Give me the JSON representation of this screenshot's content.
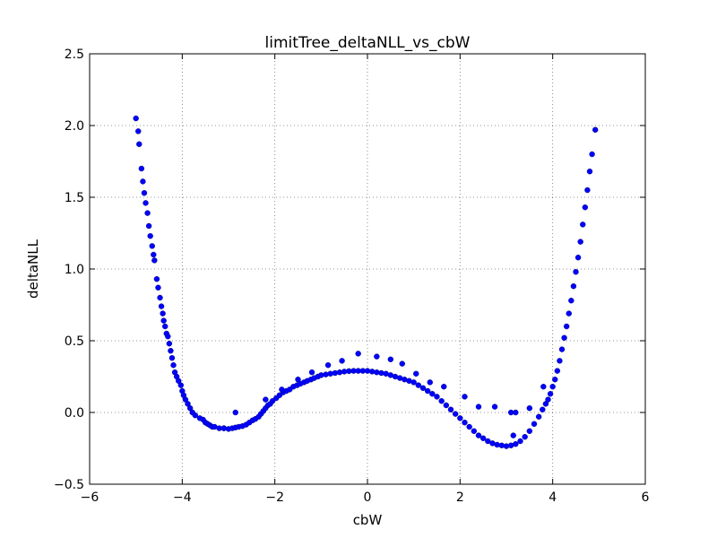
{
  "chart_data": {
    "type": "scatter",
    "title": "limitTree_deltaNLL_vs_cbW",
    "xlabel": "cbW",
    "ylabel": "deltaNLL",
    "xlim": [
      -6,
      6
    ],
    "ylim": [
      -0.5,
      2.5
    ],
    "xticks": [
      -6,
      -4,
      -2,
      0,
      2,
      4,
      6
    ],
    "yticks": [
      -0.5,
      0.0,
      0.5,
      1.0,
      1.5,
      2.0,
      2.5
    ],
    "xtick_labels": [
      "−6",
      "−4",
      "−2",
      "0",
      "2",
      "4",
      "6"
    ],
    "ytick_labels": [
      "−0.5",
      "0.0",
      "0.5",
      "1.0",
      "1.5",
      "2.0",
      "2.5"
    ],
    "grid": true,
    "marker_color": "#0000ff",
    "series": [
      {
        "points": [
          [
            -5.0,
            2.05
          ],
          [
            -4.95,
            1.96
          ],
          [
            -4.93,
            1.87
          ],
          [
            -4.88,
            1.7
          ],
          [
            -4.85,
            1.61
          ],
          [
            -4.82,
            1.53
          ],
          [
            -4.79,
            1.46
          ],
          [
            -4.75,
            1.39
          ],
          [
            -4.72,
            1.3
          ],
          [
            -4.69,
            1.23
          ],
          [
            -4.65,
            1.16
          ],
          [
            -4.62,
            1.1
          ],
          [
            -4.6,
            1.06
          ],
          [
            -4.55,
            0.93
          ],
          [
            -4.52,
            0.87
          ],
          [
            -4.48,
            0.8
          ],
          [
            -4.45,
            0.74
          ],
          [
            -4.42,
            0.69
          ],
          [
            -4.4,
            0.64
          ],
          [
            -4.37,
            0.6
          ],
          [
            -4.34,
            0.55
          ],
          [
            -4.31,
            0.53
          ],
          [
            -4.28,
            0.48
          ],
          [
            -4.25,
            0.43
          ],
          [
            -4.22,
            0.38
          ],
          [
            -4.19,
            0.33
          ],
          [
            -4.16,
            0.28
          ],
          [
            -4.12,
            0.25
          ],
          [
            -4.08,
            0.22
          ],
          [
            -4.03,
            0.19
          ],
          [
            -4.0,
            0.15
          ],
          [
            -3.97,
            0.12
          ],
          [
            -3.93,
            0.09
          ],
          [
            -3.88,
            0.06
          ],
          [
            -3.83,
            0.03
          ],
          [
            -3.78,
            0.0
          ],
          [
            -3.72,
            -0.02
          ],
          [
            -3.62,
            -0.04
          ],
          [
            -3.55,
            -0.05
          ],
          [
            -3.5,
            -0.07
          ],
          [
            -3.45,
            -0.08
          ],
          [
            -3.4,
            -0.09
          ],
          [
            -3.35,
            -0.1
          ],
          [
            -3.3,
            -0.1
          ],
          [
            -3.2,
            -0.11
          ],
          [
            -3.1,
            -0.11
          ],
          [
            -3.0,
            -0.115
          ],
          [
            -2.92,
            -0.11
          ],
          [
            -2.85,
            -0.105
          ],
          [
            -2.78,
            -0.1
          ],
          [
            -2.7,
            -0.095
          ],
          [
            -2.62,
            -0.085
          ],
          [
            -2.55,
            -0.07
          ],
          [
            -2.48,
            -0.055
          ],
          [
            -2.42,
            -0.045
          ],
          [
            -2.35,
            -0.03
          ],
          [
            -2.3,
            -0.01
          ],
          [
            -2.25,
            0.01
          ],
          [
            -2.2,
            0.03
          ],
          [
            -2.15,
            0.05
          ],
          [
            -2.1,
            0.06
          ],
          [
            -2.05,
            0.08
          ],
          [
            -1.97,
            0.1
          ],
          [
            -1.9,
            0.12
          ],
          [
            -1.82,
            0.14
          ],
          [
            -1.75,
            0.15
          ],
          [
            -1.68,
            0.16
          ],
          [
            -1.6,
            0.18
          ],
          [
            -1.52,
            0.19
          ],
          [
            -1.45,
            0.2
          ],
          [
            -1.37,
            0.21
          ],
          [
            -1.3,
            0.22
          ],
          [
            -1.22,
            0.23
          ],
          [
            -1.15,
            0.24
          ],
          [
            -1.07,
            0.25
          ],
          [
            -1.0,
            0.26
          ],
          [
            -0.9,
            0.265
          ],
          [
            -0.8,
            0.27
          ],
          [
            -0.7,
            0.275
          ],
          [
            -0.6,
            0.28
          ],
          [
            -0.5,
            0.285
          ],
          [
            -0.4,
            0.288
          ],
          [
            -0.3,
            0.29
          ],
          [
            -0.2,
            0.29
          ],
          [
            -0.1,
            0.29
          ],
          [
            0.0,
            0.29
          ],
          [
            0.1,
            0.285
          ],
          [
            0.2,
            0.28
          ],
          [
            0.3,
            0.275
          ],
          [
            0.4,
            0.27
          ],
          [
            0.5,
            0.26
          ],
          [
            0.6,
            0.25
          ],
          [
            0.7,
            0.24
          ],
          [
            0.8,
            0.23
          ],
          [
            0.9,
            0.22
          ],
          [
            1.0,
            0.21
          ],
          [
            1.1,
            0.19
          ],
          [
            1.2,
            0.17
          ],
          [
            1.3,
            0.15
          ],
          [
            1.4,
            0.13
          ],
          [
            1.5,
            0.11
          ],
          [
            1.6,
            0.08
          ],
          [
            1.7,
            0.05
          ],
          [
            1.8,
            0.02
          ],
          [
            1.9,
            -0.01
          ],
          [
            2.0,
            -0.04
          ],
          [
            2.1,
            -0.07
          ],
          [
            2.2,
            -0.1
          ],
          [
            2.3,
            -0.13
          ],
          [
            2.4,
            -0.16
          ],
          [
            2.5,
            -0.18
          ],
          [
            2.6,
            -0.2
          ],
          [
            2.7,
            -0.215
          ],
          [
            2.8,
            -0.225
          ],
          [
            2.9,
            -0.23
          ],
          [
            3.0,
            -0.235
          ],
          [
            3.1,
            -0.23
          ],
          [
            3.2,
            -0.22
          ],
          [
            3.3,
            -0.2
          ],
          [
            3.4,
            -0.17
          ],
          [
            3.5,
            -0.13
          ],
          [
            3.6,
            -0.08
          ],
          [
            3.7,
            -0.03
          ],
          [
            3.78,
            0.02
          ],
          [
            3.85,
            0.06
          ],
          [
            3.9,
            0.09
          ],
          [
            3.95,
            0.13
          ],
          [
            4.0,
            0.18
          ],
          [
            4.05,
            0.23
          ],
          [
            4.1,
            0.29
          ],
          [
            4.15,
            0.36
          ],
          [
            4.2,
            0.44
          ],
          [
            4.25,
            0.52
          ],
          [
            4.3,
            0.6
          ],
          [
            4.35,
            0.69
          ],
          [
            4.4,
            0.78
          ],
          [
            4.45,
            0.88
          ],
          [
            4.5,
            0.98
          ],
          [
            4.55,
            1.08
          ],
          [
            4.6,
            1.19
          ],
          [
            4.65,
            1.31
          ],
          [
            4.7,
            1.43
          ],
          [
            4.75,
            1.55
          ],
          [
            4.8,
            1.68
          ],
          [
            4.85,
            1.8
          ],
          [
            4.92,
            1.97
          ],
          [
            -3.1,
            -0.11
          ],
          [
            -2.85,
            -0.0
          ],
          [
            -2.2,
            0.09
          ],
          [
            -1.85,
            0.16
          ],
          [
            -1.5,
            0.23
          ],
          [
            -1.2,
            0.28
          ],
          [
            -0.85,
            0.33
          ],
          [
            -0.55,
            0.36
          ],
          [
            -0.2,
            0.41
          ],
          [
            0.2,
            0.39
          ],
          [
            0.5,
            0.37
          ],
          [
            0.75,
            0.34
          ],
          [
            1.05,
            0.27
          ],
          [
            1.35,
            0.21
          ],
          [
            1.65,
            0.18
          ],
          [
            2.1,
            0.11
          ],
          [
            2.4,
            0.04
          ],
          [
            2.75,
            0.04
          ],
          [
            3.1,
            0.0
          ],
          [
            3.15,
            -0.16
          ],
          [
            3.5,
            0.03
          ],
          [
            3.8,
            0.18
          ],
          [
            3.2,
            0.0
          ]
        ]
      }
    ]
  }
}
